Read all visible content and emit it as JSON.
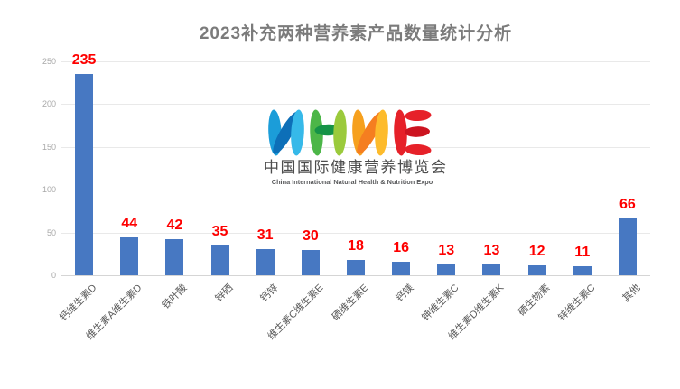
{
  "title": "2023补充两种营养素产品数量统计分析",
  "logo": {
    "letters": "NHNE",
    "subtitle_cn": "中国国际健康营养博览会",
    "subtitle_en": "China International Natural Health & Nutrition Expo",
    "letter_colors": {
      "n1_left": "#1b9dd9",
      "n1_diag": "#0d6fb8",
      "n1_right": "#36b9e9",
      "h_left": "#4cb648",
      "h_cross": "#159347",
      "h_right": "#9bca3c",
      "n2_left": "#f6a01e",
      "n2_diag": "#f57e20",
      "n2_right": "#fdbb2c",
      "e_main": "#e62129",
      "e_mid": "#cc1420"
    }
  },
  "chart_data": {
    "type": "bar",
    "title": "2023补充两种营养素产品数量统计分析",
    "categories": [
      "钙维生素D",
      "维生素A维生素D",
      "铁叶酸",
      "锌硒",
      "钙锌",
      "维生素C维生素E",
      "硒维生素E",
      "钙镁",
      "钾维生素C",
      "维生素D维生素K",
      "硒生物素",
      "锌维生素C",
      "其他"
    ],
    "values": [
      235,
      44,
      42,
      35,
      31,
      30,
      18,
      16,
      13,
      13,
      12,
      11,
      66
    ],
    "xlabel": "",
    "ylabel": "",
    "ylim": [
      0,
      250
    ],
    "yticks": [
      0,
      50,
      100,
      150,
      200,
      250
    ],
    "grid": true,
    "legend": false,
    "bar_color": "#4778c2",
    "value_label_color": "#fe0000"
  }
}
